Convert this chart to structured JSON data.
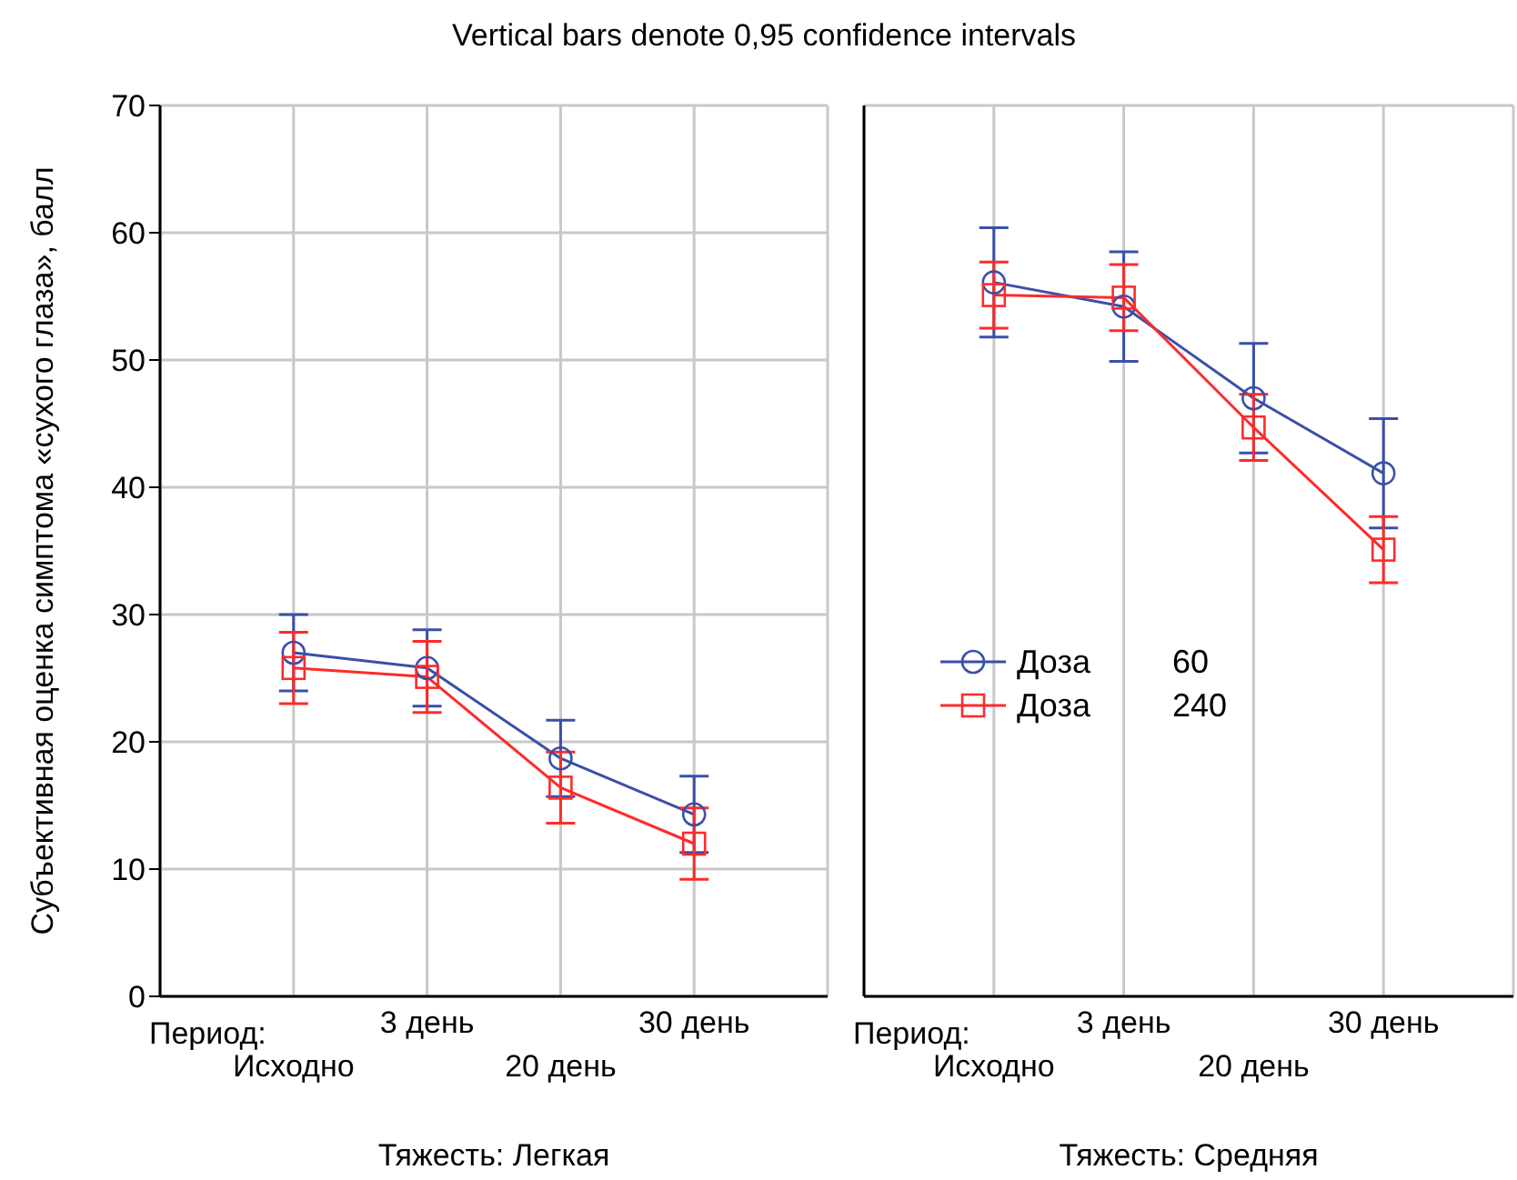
{
  "chart_data": [
    {
      "type": "line",
      "title": "Vertical bars denote 0,95 confidence intervals",
      "xlabel": "Тяжесть: Легкая",
      "ylabel": "Субъективная оценка симптома «сухого глаза», балл",
      "annotations": [
        "Период:"
      ],
      "categories": [
        "Исходно",
        "3 день",
        "20 день",
        "30 день"
      ],
      "ylim": [
        0,
        70
      ],
      "yticks": [
        0,
        10,
        20,
        30,
        40,
        50,
        60,
        70
      ],
      "grid": true,
      "legend": false,
      "series": [
        {
          "color": "#3a4fa8",
          "marker": "circle",
          "values": [
            27,
            25.8,
            18.7,
            14.3
          ],
          "errors": [
            3,
            3,
            3,
            3
          ]
        },
        {
          "color": "#ff2a2a",
          "marker": "square",
          "values": [
            25.8,
            25.1,
            16.4,
            12
          ],
          "errors": [
            2.8,
            2.8,
            2.8,
            2.8
          ]
        }
      ]
    },
    {
      "type": "line",
      "xlabel": "Тяжесть: Средняя",
      "annotations": [
        "Период:"
      ],
      "categories": [
        "Исходно",
        "3 день",
        "20 день",
        "30 день"
      ],
      "ylim": [
        0,
        70
      ],
      "yticks": [
        0,
        10,
        20,
        30,
        40,
        50,
        60,
        70
      ],
      "tick_labels": "x",
      "grid": true,
      "legend": "bottom left",
      "series": [
        {
          "name": "Доза 60",
          "color": "#3a4fa8",
          "marker": "circle",
          "values": [
            56.1,
            54.2,
            47,
            41.1
          ],
          "errors": [
            4.3,
            4.3,
            4.3,
            4.3
          ]
        },
        {
          "name": "Доза 240",
          "color": "#ff2a2a",
          "marker": "square",
          "values": [
            55.1,
            54.9,
            44.7,
            35.1
          ],
          "errors": [
            2.6,
            2.6,
            2.6,
            2.6
          ]
        }
      ]
    }
  ]
}
